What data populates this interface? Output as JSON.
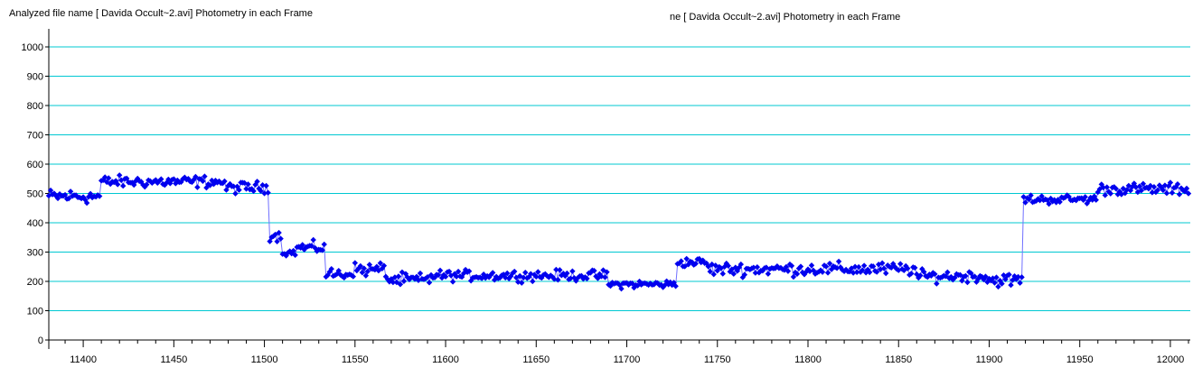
{
  "window": {
    "title_left": "Analyzed file name [ Davida Occult~2.avi]   Photometry in each Frame",
    "title_right": "ne [ Davida Occult~2.avi]   Photometry in each Frame"
  },
  "colors": {
    "series": "#0000ee",
    "line": "#7070ff",
    "grid": "#00c8d2",
    "axis": "#000000"
  },
  "chart_data": {
    "type": "line",
    "title": "",
    "xlabel": "",
    "ylabel": "",
    "xlim": [
      11381,
      12011
    ],
    "ylim": [
      0,
      1000
    ],
    "grid": true,
    "marker": "diamond",
    "x_ticks": [
      11400,
      11450,
      11500,
      11550,
      11600,
      11650,
      11700,
      11750,
      11800,
      11850,
      11900,
      11950,
      12000
    ],
    "y_ticks": [
      0,
      100,
      200,
      300,
      400,
      500,
      600,
      700,
      800,
      900,
      1000
    ],
    "x_start": 11381,
    "x_step": 1,
    "segments": [
      {
        "from": 11381,
        "to": 11410,
        "level": 490,
        "noise": 22
      },
      {
        "from": 11410,
        "to": 11478,
        "level": 540,
        "noise": 18
      },
      {
        "from": 11478,
        "to": 11503,
        "level": 520,
        "noise": 18
      },
      {
        "from": 11503,
        "to": 11510,
        "level": 355,
        "noise": 15
      },
      {
        "from": 11510,
        "to": 11518,
        "level": 298,
        "noise": 10
      },
      {
        "from": 11518,
        "to": 11534,
        "level": 315,
        "noise": 18
      },
      {
        "from": 11534,
        "to": 11548,
        "level": 225,
        "noise": 18
      },
      {
        "from": 11548,
        "to": 11568,
        "level": 240,
        "noise": 22
      },
      {
        "from": 11568,
        "to": 11592,
        "level": 205,
        "noise": 20
      },
      {
        "from": 11592,
        "to": 11690,
        "level": 220,
        "noise": 16
      },
      {
        "from": 11690,
        "to": 11728,
        "level": 190,
        "noise": 12
      },
      {
        "from": 11728,
        "to": 11745,
        "level": 265,
        "noise": 14
      },
      {
        "from": 11745,
        "to": 11860,
        "level": 242,
        "noise": 20
      },
      {
        "from": 11860,
        "to": 11899,
        "level": 218,
        "noise": 18
      },
      {
        "from": 11899,
        "to": 11919,
        "level": 205,
        "noise": 20
      },
      {
        "from": 11919,
        "to": 11960,
        "level": 480,
        "noise": 14
      },
      {
        "from": 11960,
        "to": 12011,
        "level": 515,
        "noise": 18
      }
    ]
  }
}
